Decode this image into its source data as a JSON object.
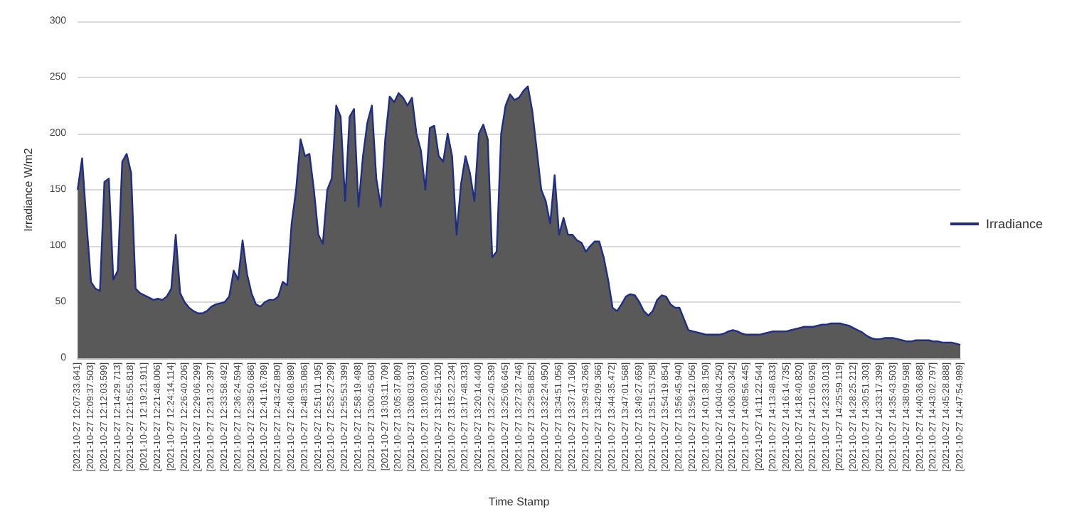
{
  "chart_data": {
    "type": "area",
    "xlabel": "Time Stamp",
    "ylabel": "Irradiance W/m2",
    "categories": [
      "[2021-10-27 12:07:33.641]",
      null,
      null,
      "[2021-10-27 12:09:37.503]",
      null,
      null,
      "[2021-10-27 12:12:03.599]",
      null,
      null,
      "[2021-10-27 12:14:29.713]",
      null,
      null,
      "[2021-10-27 12:16:55.818]",
      null,
      null,
      "[2021-10-27 12:19:21.911]",
      null,
      null,
      "[2021-10-27 12:21:48.006]",
      null,
      null,
      "[2021-10-27 12:24:14.114]",
      null,
      null,
      "[2021-10-27 12:26:40.206]",
      null,
      null,
      "[2021-10-27 12:29:06.299]",
      null,
      null,
      "[2021-10-27 12:31:32.397]",
      null,
      null,
      "[2021-10-27 12:33:58.492]",
      null,
      null,
      "[2021-10-27 12:36:24.594]",
      null,
      null,
      "[2021-10-27 12:38:50.686]",
      null,
      null,
      "[2021-10-27 12:41:16.789]",
      null,
      null,
      "[2021-10-27 12:43:42.890]",
      null,
      null,
      "[2021-10-27 12:46:08.989]",
      null,
      null,
      "[2021-10-27 12:48:35.086]",
      null,
      null,
      "[2021-10-27 12:51:01.195]",
      null,
      null,
      "[2021-10-27 12:53:27.299]",
      null,
      null,
      "[2021-10-27 12:55:53.399]",
      null,
      null,
      "[2021-10-27 12:58:19.498]",
      null,
      null,
      "[2021-10-27 13:00:45.603]",
      null,
      null,
      "[2021-10-27 13:03:11.709]",
      null,
      null,
      "[2021-10-27 13:05:37.809]",
      null,
      null,
      "[2021-10-27 13:08:03.913]",
      null,
      null,
      "[2021-10-27 13:10:30.020]",
      null,
      null,
      "[2021-10-27 13:12:56.120]",
      null,
      null,
      "[2021-10-27 13:15:22.234]",
      null,
      null,
      "[2021-10-27 13:17:48.333]",
      null,
      null,
      "[2021-10-27 13:20:14.440]",
      null,
      null,
      "[2021-10-27 13:22:40.539]",
      null,
      null,
      "[2021-10-27 13:25:06.645]",
      null,
      null,
      "[2021-10-27 13:27:32.746]",
      null,
      null,
      "[2021-10-27 13:29:58.852]",
      null,
      null,
      "[2021-10-27 13:32:24.950]",
      null,
      null,
      "[2021-10-27 13:34:51.056]",
      null,
      null,
      "[2021-10-27 13:37:17.160]",
      null,
      null,
      "[2021-10-27 13:39:43.266]",
      null,
      null,
      "[2021-10-27 13:42:09.366]",
      null,
      null,
      "[2021-10-27 13:44:35.472]",
      null,
      null,
      "[2021-10-27 13:47:01.568]",
      null,
      null,
      "[2021-10-27 13:49:27.659]",
      null,
      null,
      "[2021-10-27 13:51:53.758]",
      null,
      null,
      "[2021-10-27 13:54:19.854]",
      null,
      null,
      "[2021-10-27 13:56:45.940]",
      null,
      null,
      "[2021-10-27 13:59:12.056]",
      null,
      null,
      "[2021-10-27 14:01:38.150]",
      null,
      null,
      "[2021-10-27 14:04:04.250]",
      null,
      null,
      "[2021-10-27 14:06:30.342]",
      null,
      null,
      "[2021-10-27 14:08:56.445]",
      null,
      null,
      "[2021-10-27 14:11:22.544]",
      null,
      null,
      "[2021-10-27 14:13:48.633]",
      null,
      null,
      "[2021-10-27 14:16:14.735]",
      null,
      null,
      "[2021-10-27 14:18:40.820]",
      null,
      null,
      "[2021-10-27 14:21:06.926]",
      null,
      null,
      "[2021-10-27 14:23:33.013]",
      null,
      null,
      "[2021-10-27 14:25:59.119]",
      null,
      null,
      "[2021-10-27 14:28:25.212]",
      null,
      null,
      "[2021-10-27 14:30:51.303]",
      null,
      null,
      "[2021-10-27 14:33:17.399]",
      null,
      null,
      "[2021-10-27 14:35:43.503]",
      null,
      null,
      "[2021-10-27 14:38:09.598]",
      null,
      null,
      "[2021-10-27 14:40:36.688]",
      null,
      null,
      "[2021-10-27 14:43:02.797]",
      null,
      null,
      "[2021-10-27 14:45:28.888]",
      null,
      null,
      "[2021-10-27 14:47:54.989]"
    ],
    "series": [
      {
        "name": "Irradiance",
        "color": "#1f2d86",
        "values": [
          150,
          178,
          120,
          68,
          62,
          60,
          157,
          160,
          70,
          78,
          175,
          182,
          165,
          62,
          58,
          56,
          54,
          52,
          53,
          52,
          55,
          62,
          110,
          58,
          50,
          45,
          42,
          40,
          40,
          42,
          46,
          48,
          49,
          50,
          55,
          78,
          70,
          105,
          75,
          58,
          48,
          46,
          50,
          52,
          52,
          55,
          68,
          65,
          120,
          150,
          195,
          180,
          182,
          150,
          110,
          102,
          150,
          160,
          225,
          215,
          140,
          215,
          222,
          135,
          180,
          210,
          225,
          160,
          135,
          195,
          233,
          228,
          236,
          232,
          225,
          232,
          200,
          185,
          150,
          205,
          207,
          180,
          175,
          200,
          180,
          110,
          155,
          180,
          165,
          140,
          200,
          208,
          195,
          90,
          95,
          200,
          225,
          235,
          230,
          232,
          238,
          242,
          220,
          185,
          150,
          140,
          120,
          163,
          110,
          125,
          110,
          110,
          105,
          103,
          95,
          100,
          104,
          104,
          90,
          70,
          45,
          42,
          48,
          55,
          57,
          56,
          50,
          42,
          38,
          42,
          52,
          56,
          55,
          48,
          45,
          45,
          35,
          25,
          24,
          23,
          22,
          21,
          21,
          21,
          21,
          22,
          24,
          25,
          24,
          22,
          21,
          21,
          21,
          21,
          22,
          23,
          24,
          24,
          24,
          24,
          25,
          26,
          27,
          28,
          28,
          28,
          29,
          30,
          30,
          31,
          31,
          31,
          30,
          29,
          27,
          25,
          23,
          20,
          18,
          17,
          17,
          18,
          18,
          18,
          17,
          16,
          15,
          15,
          16,
          16,
          16,
          16,
          15,
          15,
          14,
          14,
          14,
          13,
          12
        ]
      }
    ],
    "ylim": [
      0,
      300
    ],
    "yticks": [
      0,
      50,
      100,
      150,
      200,
      250,
      300
    ],
    "grid": "y",
    "legend": "right",
    "marker": "none"
  }
}
